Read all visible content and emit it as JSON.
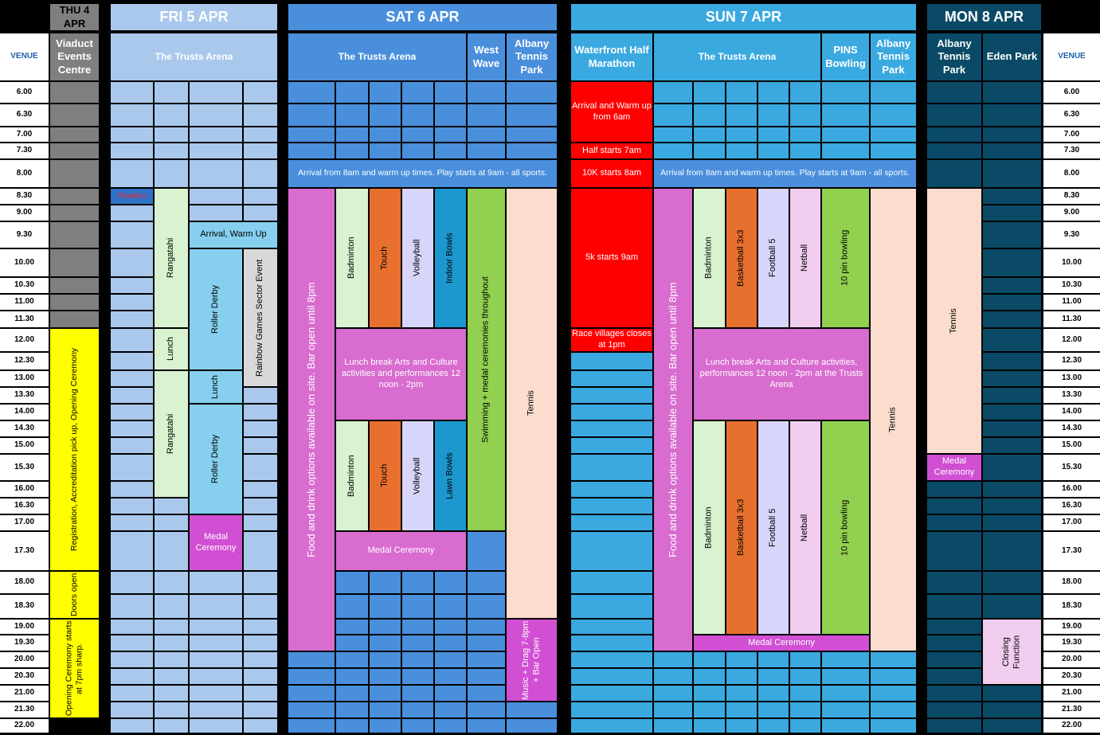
{
  "days": [
    "THU 4 APR",
    "FRI 5 APR",
    "SAT 6 APR",
    "SUN 7 APR",
    "MON 8 APR"
  ],
  "venue_label": "VENUE",
  "venues": {
    "thu": "Viaduct Events Centre",
    "fri": "The Trusts Arena",
    "sat_arena": "The Trusts Arena",
    "sat_ww": "West Wave",
    "sat_atp": "Albany Tennis Park",
    "sun_wf": "Waterfront Half Marathon",
    "sun_arena": "The Trusts Arena",
    "sun_pins": "PINS Bowling",
    "sun_atp": "Albany Tennis Park",
    "mon_atp": "Albany Tennis Park",
    "mon_eden": "Eden Park"
  },
  "times": [
    "6.00",
    "6.30",
    "7.00",
    "7.30",
    "8.00",
    "8.30",
    "9.00",
    "9.30",
    "10.00",
    "10.30",
    "11.00",
    "11.30",
    "12.00",
    "12.30",
    "13.00",
    "13.30",
    "14.00",
    "14.30",
    "15.00",
    "15.30",
    "16.00",
    "16.30",
    "17.00",
    "17.30",
    "18.00",
    "18.30",
    "19.00",
    "19.30",
    "20.00",
    "20.30",
    "21.00",
    "21.30",
    "22.00"
  ],
  "events": {
    "thu_reg": "Registration, Accreditation pick up, Opening Ceremony",
    "thu_doors": "Doors open",
    "thu_open": "Opening Ceremony starts at 7pm sharp.",
    "fri_powhiri": "Powhiri",
    "fri_rang1": "Rangatahi",
    "fri_lunch1": "Lunch",
    "fri_rang2": "Rangatahi",
    "fri_arrival": "Arrival, Warm Up",
    "fri_derby1": "Roller Derby",
    "fri_lunch2": "Lunch",
    "fri_derby2": "Roller Derby",
    "fri_medal": "Medal Ceremony",
    "fri_rainbow": "Rainbow Games Sector Event",
    "sat_arrival": "Arrival from 8am and warm up times. Play starts at 9am - all sports.",
    "sat_food": "Food and drink options available on site. Bar open until 8pm",
    "sat_badminton1": "Badminton",
    "sat_touch1": "Touch",
    "sat_volley1": "Volleyball",
    "sat_indoor": "Indoor Bowls",
    "sat_lunch": "Lunch break Arts and Culture activities and performances 12 noon - 2pm",
    "sat_badminton2": "Badminton",
    "sat_touch2": "Touch",
    "sat_volley2": "Volleyball",
    "sat_lawn": "Lawn Bowls",
    "sat_medal": "Medal Ceremony",
    "sat_swim": "Swimming + medal ceremonies throughout",
    "sat_tennis": "Tennis",
    "sat_music": "Music + Drag 7-8pm + Bar Open",
    "sun_warm": "Arrival and Warm up from 6am",
    "sun_half": "Half starts 7am",
    "sun_10k": "10K starts 8am",
    "sun_5k": "5k starts 9am",
    "sun_race": "Race villages closes at 1pm",
    "sun_arrival": "Arrival from 8am and warm up times. Play starts at 9am - all sports.",
    "sun_food": "Food and drink options available on site. Bar open until 8pm",
    "sun_badminton1": "Badminton",
    "sun_bball1": "Basketball 3x3",
    "sun_football1": "Football 5",
    "sun_netball1": "Netball",
    "sun_pin1": "10 pin bowling",
    "sun_lunch": "Lunch break Arts and Culture activities, performances 12 noon - 2pm at the Trusts Arena",
    "sun_badminton2": "Badminton",
    "sun_bball2": "Basketball 3x3",
    "sun_football2": "Football 5",
    "sun_netball2": "Netball",
    "sun_pin2": "10 pin bowling",
    "sun_medal": "Medal Ceremony",
    "sun_tennis": "Tennis",
    "mon_tennis": "Tennis",
    "mon_medal": "Medal Ceremony",
    "mon_closing": "Closing Function"
  },
  "colors": {
    "thu": "#7f7f7f",
    "fri": "#a9c8ec",
    "sat": "#4a8fdc",
    "sun": "#3aa9df",
    "mon": "#0a4a66",
    "yellow": "#ffff00",
    "purple": "#d86ccf",
    "green": "#d9f2d0",
    "orange": "#e8702f",
    "lavender": "#d8d5fb",
    "teal": "#1c98cf",
    "lime": "#92d050",
    "peach": "#fbdccd",
    "red": "#ff0000",
    "lightblue": "#86cfee",
    "pink": "#f0cdef",
    "grey": "#d8d8d8",
    "powhiri": "#2f73c9",
    "magenta": "#d04fd3"
  }
}
